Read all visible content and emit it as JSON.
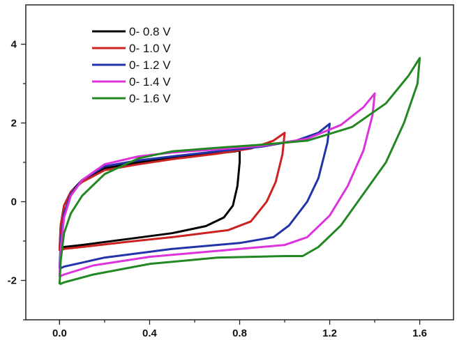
{
  "chart_data": {
    "type": "line",
    "title": "",
    "xlabel": "",
    "ylabel": "",
    "xlim": [
      -0.15,
      1.75
    ],
    "ylim": [
      -3.0,
      5.0
    ],
    "x_ticks": [
      0.0,
      0.4,
      0.8,
      1.2,
      1.6
    ],
    "x_tick_labels": [
      "0.0",
      "0.4",
      "0.8",
      "1.2",
      "1.6"
    ],
    "y_ticks": [
      -2,
      0,
      2,
      4
    ],
    "y_tick_labels": [
      "-2",
      "0",
      "2",
      "4"
    ],
    "grid": false,
    "legend_position": "top-left",
    "series": [
      {
        "name": "0- 0.8 V",
        "color": "#000000",
        "points": [
          [
            0.0,
            -1.25
          ],
          [
            0.005,
            -0.6
          ],
          [
            0.02,
            -0.1
          ],
          [
            0.05,
            0.25
          ],
          [
            0.1,
            0.55
          ],
          [
            0.2,
            0.85
          ],
          [
            0.35,
            1.0
          ],
          [
            0.5,
            1.1
          ],
          [
            0.65,
            1.2
          ],
          [
            0.78,
            1.28
          ],
          [
            0.8,
            1.3
          ],
          [
            0.8,
            1.0
          ],
          [
            0.79,
            0.4
          ],
          [
            0.77,
            -0.1
          ],
          [
            0.73,
            -0.4
          ],
          [
            0.65,
            -0.62
          ],
          [
            0.5,
            -0.8
          ],
          [
            0.3,
            -0.95
          ],
          [
            0.1,
            -1.1
          ],
          [
            0.02,
            -1.15
          ],
          [
            0.0,
            -1.25
          ]
        ]
      },
      {
        "name": "0- 1.0 V",
        "color": "#cc2222",
        "points": [
          [
            0.0,
            -1.25
          ],
          [
            0.005,
            -0.6
          ],
          [
            0.02,
            -0.1
          ],
          [
            0.05,
            0.25
          ],
          [
            0.1,
            0.5
          ],
          [
            0.2,
            0.8
          ],
          [
            0.35,
            0.95
          ],
          [
            0.5,
            1.08
          ],
          [
            0.7,
            1.22
          ],
          [
            0.85,
            1.35
          ],
          [
            0.95,
            1.55
          ],
          [
            1.0,
            1.75
          ],
          [
            0.99,
            1.2
          ],
          [
            0.96,
            0.5
          ],
          [
            0.92,
            0.0
          ],
          [
            0.85,
            -0.5
          ],
          [
            0.75,
            -0.72
          ],
          [
            0.5,
            -0.9
          ],
          [
            0.3,
            -1.02
          ],
          [
            0.1,
            -1.15
          ],
          [
            0.02,
            -1.2
          ],
          [
            0.0,
            -1.25
          ]
        ]
      },
      {
        "name": "0- 1.2 V",
        "color": "#2233aa",
        "points": [
          [
            0.0,
            -1.7
          ],
          [
            0.005,
            -1.0
          ],
          [
            0.02,
            -0.3
          ],
          [
            0.05,
            0.2
          ],
          [
            0.1,
            0.55
          ],
          [
            0.2,
            0.9
          ],
          [
            0.35,
            1.05
          ],
          [
            0.5,
            1.15
          ],
          [
            0.7,
            1.28
          ],
          [
            0.9,
            1.4
          ],
          [
            1.05,
            1.55
          ],
          [
            1.15,
            1.75
          ],
          [
            1.2,
            1.98
          ],
          [
            1.19,
            1.5
          ],
          [
            1.15,
            0.6
          ],
          [
            1.1,
            0.0
          ],
          [
            1.02,
            -0.6
          ],
          [
            0.95,
            -0.9
          ],
          [
            0.8,
            -1.05
          ],
          [
            0.5,
            -1.2
          ],
          [
            0.2,
            -1.42
          ],
          [
            0.02,
            -1.65
          ],
          [
            0.0,
            -1.7
          ]
        ]
      },
      {
        "name": "0- 1.4 V",
        "color": "#dd33dd",
        "points": [
          [
            0.0,
            -1.9
          ],
          [
            0.005,
            -1.2
          ],
          [
            0.02,
            -0.4
          ],
          [
            0.05,
            0.15
          ],
          [
            0.1,
            0.55
          ],
          [
            0.2,
            0.95
          ],
          [
            0.35,
            1.15
          ],
          [
            0.5,
            1.25
          ],
          [
            0.7,
            1.33
          ],
          [
            0.9,
            1.42
          ],
          [
            1.1,
            1.6
          ],
          [
            1.25,
            1.95
          ],
          [
            1.35,
            2.4
          ],
          [
            1.4,
            2.75
          ],
          [
            1.39,
            2.2
          ],
          [
            1.35,
            1.3
          ],
          [
            1.28,
            0.4
          ],
          [
            1.2,
            -0.35
          ],
          [
            1.1,
            -0.9
          ],
          [
            1.0,
            -1.1
          ],
          [
            0.7,
            -1.25
          ],
          [
            0.4,
            -1.4
          ],
          [
            0.15,
            -1.62
          ],
          [
            0.02,
            -1.85
          ],
          [
            0.0,
            -1.9
          ]
        ]
      },
      {
        "name": "0- 1.6 V",
        "color": "#228822",
        "points": [
          [
            0.0,
            -2.1
          ],
          [
            0.005,
            -1.5
          ],
          [
            0.02,
            -0.8
          ],
          [
            0.05,
            -0.3
          ],
          [
            0.1,
            0.15
          ],
          [
            0.2,
            0.7
          ],
          [
            0.35,
            1.1
          ],
          [
            0.5,
            1.28
          ],
          [
            0.7,
            1.37
          ],
          [
            0.9,
            1.45
          ],
          [
            1.1,
            1.55
          ],
          [
            1.3,
            1.9
          ],
          [
            1.45,
            2.5
          ],
          [
            1.55,
            3.2
          ],
          [
            1.6,
            3.65
          ],
          [
            1.59,
            3.0
          ],
          [
            1.53,
            2.0
          ],
          [
            1.45,
            1.0
          ],
          [
            1.35,
            0.2
          ],
          [
            1.25,
            -0.6
          ],
          [
            1.15,
            -1.15
          ],
          [
            1.08,
            -1.38
          ],
          [
            1.0,
            -1.38
          ],
          [
            0.7,
            -1.42
          ],
          [
            0.4,
            -1.58
          ],
          [
            0.15,
            -1.85
          ],
          [
            0.02,
            -2.05
          ],
          [
            0.0,
            -2.1
          ]
        ]
      }
    ]
  }
}
